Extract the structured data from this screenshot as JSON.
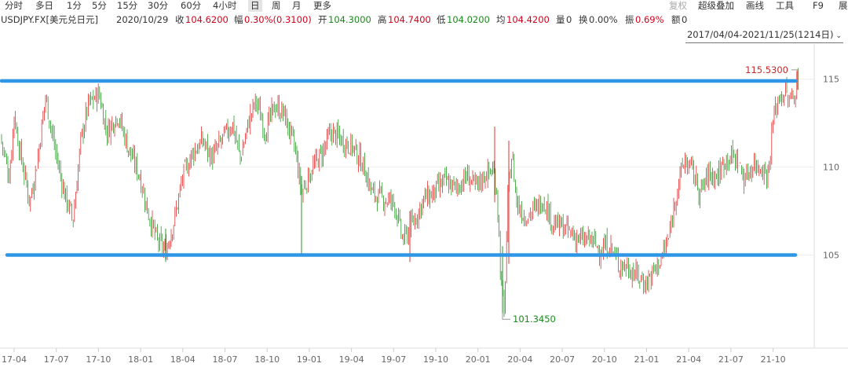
{
  "toolbar": {
    "timeframes": [
      "分时",
      "多日",
      "1分",
      "5分",
      "15分",
      "30分",
      "60分",
      "4小时",
      "日",
      "周",
      "月",
      "更多"
    ],
    "active_timeframe": "日",
    "tools": [
      "复权",
      "超级叠加",
      "画线",
      "工具",
      "F9",
      "展"
    ]
  },
  "info": {
    "symbol": "USDJPY.FX[美元兑日元]",
    "date": "2020/10/29",
    "close_label": "收",
    "close": "104.6200",
    "change_label": "幅",
    "change": "0.30%(0.3100)",
    "open_label": "开",
    "open": "104.3000",
    "high_label": "高",
    "high": "104.7400",
    "low_label": "低",
    "low": "104.0200",
    "avg_label": "均",
    "avg": "104.4200",
    "volume_label": "量",
    "volume": "0",
    "turnover_label": "换",
    "turnover": "0.00%",
    "amplitude_label": "振",
    "amplitude": "0.69%",
    "amount_label": "额",
    "amount": "0"
  },
  "range_selector": {
    "label": "2017/04/04-2021/11/25(1214日)"
  },
  "chart_data": {
    "type": "candlestick",
    "symbol": "USDJPY.FX",
    "ylim": [
      99.7,
      117.0
    ],
    "y_ticks": [
      "115",
      "110",
      "105"
    ],
    "x_ticks": [
      "17-04",
      "17-07",
      "17-10",
      "18-01",
      "18-04",
      "18-07",
      "18-10",
      "19-01",
      "19-04",
      "19-07",
      "19-10",
      "20-01",
      "20-04",
      "20-07",
      "20-10",
      "21-01",
      "21-04",
      "21-07",
      "21-10"
    ],
    "annotations": {
      "max": "115.5300",
      "min": "101.3450"
    },
    "horizontal_lines": [
      114.9,
      105.0
    ],
    "approx_path": [
      [
        0,
        111.8
      ],
      [
        12,
        109.5
      ],
      [
        18,
        113.0
      ],
      [
        25,
        111.0
      ],
      [
        38,
        108.0
      ],
      [
        48,
        110.5
      ],
      [
        58,
        114.0
      ],
      [
        70,
        111.0
      ],
      [
        82,
        108.5
      ],
      [
        93,
        107.0
      ],
      [
        103,
        111.5
      ],
      [
        112,
        113.5
      ],
      [
        126,
        114.2
      ],
      [
        136,
        112.0
      ],
      [
        150,
        113.0
      ],
      [
        164,
        111.0
      ],
      [
        178,
        109.5
      ],
      [
        188,
        107.5
      ],
      [
        200,
        105.8
      ],
      [
        211,
        105.2
      ],
      [
        222,
        107.0
      ],
      [
        233,
        109.5
      ],
      [
        245,
        110.8
      ],
      [
        258,
        111.5
      ],
      [
        270,
        110.5
      ],
      [
        282,
        111.5
      ],
      [
        296,
        112.5
      ],
      [
        306,
        110.5
      ],
      [
        318,
        112.8
      ],
      [
        326,
        113.8
      ],
      [
        338,
        112.0
      ],
      [
        350,
        113.5
      ],
      [
        362,
        113.0
      ],
      [
        376,
        111.0
      ],
      [
        384,
        108.5
      ],
      [
        396,
        109.8
      ],
      [
        410,
        110.8
      ],
      [
        422,
        112.0
      ],
      [
        436,
        111.5
      ],
      [
        448,
        111.2
      ],
      [
        462,
        110.2
      ],
      [
        474,
        108.5
      ],
      [
        488,
        108.2
      ],
      [
        502,
        108.0
      ],
      [
        513,
        105.8
      ],
      [
        520,
        106.3
      ],
      [
        528,
        107.0
      ],
      [
        540,
        108.2
      ],
      [
        552,
        108.5
      ],
      [
        566,
        109.2
      ],
      [
        580,
        108.8
      ],
      [
        596,
        109.5
      ],
      [
        606,
        108.8
      ],
      [
        618,
        109.6
      ],
      [
        628,
        109.8
      ],
      [
        633,
        108.6
      ],
      [
        638,
        103.5
      ],
      [
        642,
        101.5
      ],
      [
        647,
        108.5
      ],
      [
        652,
        110.8
      ],
      [
        658,
        108.0
      ],
      [
        668,
        107.2
      ],
      [
        680,
        107.5
      ],
      [
        692,
        108.2
      ],
      [
        704,
        106.8
      ],
      [
        716,
        106.6
      ],
      [
        728,
        106.2
      ],
      [
        740,
        105.8
      ],
      [
        752,
        105.9
      ],
      [
        764,
        105.3
      ],
      [
        776,
        105.6
      ],
      [
        788,
        104.5
      ],
      [
        800,
        104.3
      ],
      [
        812,
        103.8
      ],
      [
        822,
        103.4
      ],
      [
        832,
        104.0
      ],
      [
        842,
        104.8
      ],
      [
        852,
        106.0
      ],
      [
        862,
        108.8
      ],
      [
        872,
        110.4
      ],
      [
        882,
        109.8
      ],
      [
        892,
        108.5
      ],
      [
        902,
        109.6
      ],
      [
        914,
        109.5
      ],
      [
        926,
        110.6
      ],
      [
        938,
        110.5
      ],
      [
        948,
        109.3
      ],
      [
        960,
        110.2
      ],
      [
        970,
        110.0
      ],
      [
        978,
        109.5
      ],
      [
        985,
        112.8
      ],
      [
        992,
        114.0
      ],
      [
        1000,
        114.2
      ],
      [
        1006,
        113.7
      ],
      [
        1012,
        114.2
      ],
      [
        1018,
        115.4
      ]
    ]
  }
}
